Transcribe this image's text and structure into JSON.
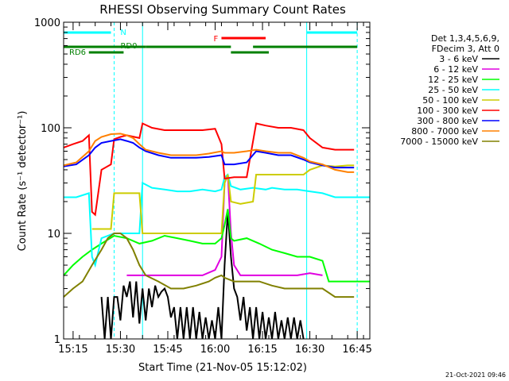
{
  "chart_data": {
    "type": "line",
    "title": "RHESSI Observing Summary Count Rates",
    "xlabel": "Start Time (21-Nov-05 15:12:02)",
    "ylabel": "Count Rate (s⁻¹ detector⁻¹)",
    "yscale": "log",
    "ylim": [
      1,
      1000
    ],
    "y_ticks": [
      {
        "value": 1,
        "label": "1"
      },
      {
        "value": 10,
        "label": "10"
      },
      {
        "value": 100,
        "label": "100"
      },
      {
        "value": 1000,
        "label": "1000"
      }
    ],
    "xlim_minutes_after_15_12": [
      0,
      97
    ],
    "x_ticks": [
      {
        "m": 3,
        "label": "15:15"
      },
      {
        "m": 18,
        "label": "15:30"
      },
      {
        "m": 33,
        "label": "15:45"
      },
      {
        "m": 48,
        "label": "16:00"
      },
      {
        "m": 63,
        "label": "16:15"
      },
      {
        "m": 78,
        "label": "16:30"
      },
      {
        "m": 93,
        "label": "16:45"
      }
    ],
    "legend_header": [
      "Det 1,3,4,5,6,9,",
      "FDecim 3, Att 0"
    ],
    "legend_position": "right",
    "series": [
      {
        "name": "3 - 6 keV",
        "color": "#000000",
        "pts": [
          [
            12,
            2.5
          ],
          [
            13,
            1
          ],
          [
            14,
            2.5
          ],
          [
            15,
            1
          ],
          [
            16,
            2.5
          ],
          [
            17,
            2.5
          ],
          [
            18,
            1.5
          ],
          [
            19,
            3.2
          ],
          [
            20,
            2.5
          ],
          [
            21,
            3.5
          ],
          [
            22,
            1.6
          ],
          [
            23,
            3.5
          ],
          [
            24,
            1.4
          ],
          [
            25,
            3
          ],
          [
            26,
            1.5
          ],
          [
            27,
            3
          ],
          [
            28,
            2
          ],
          [
            29,
            3.2
          ],
          [
            30,
            2.5
          ],
          [
            31,
            2.8
          ],
          [
            32,
            3
          ],
          [
            33,
            2.5
          ],
          [
            34,
            1.6
          ],
          [
            35,
            2
          ],
          [
            36,
            1
          ],
          [
            37,
            2
          ],
          [
            38,
            1
          ],
          [
            39,
            2
          ],
          [
            40,
            1
          ],
          [
            41,
            2
          ],
          [
            42,
            1
          ],
          [
            43,
            1.8
          ],
          [
            44,
            1
          ],
          [
            45,
            1.6
          ],
          [
            46,
            1
          ],
          [
            47,
            1.5
          ],
          [
            48,
            1
          ],
          [
            49,
            2
          ],
          [
            50,
            1
          ],
          [
            51,
            5
          ],
          [
            52,
            16
          ],
          [
            53,
            6
          ],
          [
            54,
            3
          ],
          [
            55,
            2.5
          ],
          [
            56,
            1.5
          ],
          [
            57,
            2.5
          ],
          [
            58,
            1.2
          ],
          [
            59,
            2
          ],
          [
            60,
            1
          ],
          [
            61,
            2
          ],
          [
            62,
            1
          ],
          [
            63,
            1.8
          ],
          [
            64,
            1
          ],
          [
            65,
            1.6
          ],
          [
            66,
            1
          ],
          [
            67,
            1.8
          ],
          [
            68,
            1
          ],
          [
            69,
            1.5
          ],
          [
            70,
            1
          ],
          [
            71,
            1.6
          ],
          [
            72,
            1
          ],
          [
            73,
            1.6
          ],
          [
            74,
            1
          ],
          [
            75,
            1.5
          ],
          [
            76,
            1
          ]
        ]
      },
      {
        "name": "6 - 12 keV",
        "color": "#e000e0",
        "pts": [
          [
            20,
            4
          ],
          [
            24,
            4
          ],
          [
            28,
            4
          ],
          [
            32,
            4
          ],
          [
            36,
            4
          ],
          [
            40,
            4
          ],
          [
            44,
            4
          ],
          [
            48,
            4.5
          ],
          [
            50,
            6
          ],
          [
            51,
            30
          ],
          [
            52,
            36
          ],
          [
            53,
            10
          ],
          [
            54,
            5
          ],
          [
            56,
            4
          ],
          [
            60,
            4
          ],
          [
            66,
            4
          ],
          [
            70,
            4
          ],
          [
            74,
            4
          ],
          [
            78,
            4.2
          ],
          [
            82,
            4
          ]
        ]
      },
      {
        "name": "12 - 25 keV",
        "color": "#00ff00",
        "pts": [
          [
            0,
            4
          ],
          [
            3,
            5
          ],
          [
            6,
            6
          ],
          [
            9,
            7
          ],
          [
            12,
            8
          ],
          [
            16,
            9.5
          ],
          [
            20,
            9
          ],
          [
            24,
            8
          ],
          [
            28,
            8.5
          ],
          [
            32,
            9.5
          ],
          [
            36,
            9
          ],
          [
            40,
            8.5
          ],
          [
            44,
            8
          ],
          [
            48,
            8
          ],
          [
            50,
            9
          ],
          [
            51,
            12
          ],
          [
            52,
            17
          ],
          [
            53,
            9
          ],
          [
            54,
            8.5
          ],
          [
            58,
            9
          ],
          [
            62,
            8
          ],
          [
            66,
            7
          ],
          [
            70,
            6.5
          ],
          [
            74,
            6
          ],
          [
            78,
            6
          ],
          [
            82,
            5.5
          ],
          [
            84,
            3.5
          ],
          [
            90,
            3.5
          ],
          [
            97,
            3.5
          ]
        ]
      },
      {
        "name": "25 - 50 keV",
        "color": "#00ffff",
        "pts": [
          [
            0,
            22
          ],
          [
            4,
            22
          ],
          [
            8,
            24
          ],
          [
            9,
            6
          ],
          [
            10,
            5
          ],
          [
            12,
            9
          ],
          [
            16,
            10
          ],
          [
            20,
            10
          ],
          [
            24,
            10
          ],
          [
            25,
            30
          ],
          [
            28,
            27
          ],
          [
            32,
            26
          ],
          [
            36,
            25
          ],
          [
            40,
            25
          ],
          [
            44,
            26
          ],
          [
            48,
            25
          ],
          [
            50,
            26
          ],
          [
            51,
            34
          ],
          [
            52,
            36
          ],
          [
            53,
            28
          ],
          [
            56,
            26
          ],
          [
            60,
            27
          ],
          [
            64,
            26
          ],
          [
            66,
            27
          ],
          [
            70,
            26
          ],
          [
            74,
            26
          ],
          [
            78,
            25
          ],
          [
            82,
            24
          ],
          [
            86,
            22
          ],
          [
            90,
            22
          ],
          [
            97,
            22
          ]
        ]
      },
      {
        "name": "50 - 100 keV",
        "color": "#cccc00",
        "pts": [
          [
            9,
            11
          ],
          [
            12,
            11
          ],
          [
            15,
            11
          ],
          [
            16,
            24
          ],
          [
            20,
            24
          ],
          [
            24,
            24
          ],
          [
            25,
            10
          ],
          [
            30,
            10
          ],
          [
            35,
            10
          ],
          [
            40,
            10
          ],
          [
            45,
            10
          ],
          [
            50,
            10
          ],
          [
            51,
            30
          ],
          [
            52,
            36
          ],
          [
            53,
            20
          ],
          [
            56,
            19
          ],
          [
            60,
            20
          ],
          [
            61,
            36
          ],
          [
            64,
            36
          ],
          [
            68,
            36
          ],
          [
            72,
            36
          ],
          [
            76,
            36
          ],
          [
            78,
            40
          ],
          [
            82,
            44
          ],
          [
            86,
            43
          ],
          [
            90,
            44
          ],
          [
            92,
            44
          ]
        ]
      },
      {
        "name": "100 - 300 keV",
        "color": "#ff0000",
        "pts": [
          [
            0,
            65
          ],
          [
            3,
            70
          ],
          [
            6,
            75
          ],
          [
            8,
            85
          ],
          [
            9,
            16
          ],
          [
            10,
            15
          ],
          [
            12,
            40
          ],
          [
            15,
            45
          ],
          [
            16,
            78
          ],
          [
            18,
            82
          ],
          [
            20,
            85
          ],
          [
            24,
            80
          ],
          [
            25,
            110
          ],
          [
            28,
            100
          ],
          [
            32,
            95
          ],
          [
            36,
            95
          ],
          [
            40,
            95
          ],
          [
            44,
            95
          ],
          [
            48,
            98
          ],
          [
            50,
            70
          ],
          [
            51,
            33
          ],
          [
            54,
            34
          ],
          [
            58,
            34
          ],
          [
            61,
            110
          ],
          [
            64,
            105
          ],
          [
            68,
            100
          ],
          [
            72,
            100
          ],
          [
            76,
            95
          ],
          [
            78,
            80
          ],
          [
            82,
            65
          ],
          [
            86,
            62
          ],
          [
            90,
            62
          ],
          [
            92,
            62
          ]
        ]
      },
      {
        "name": "300 - 800 keV",
        "color": "#0000ff",
        "pts": [
          [
            0,
            43
          ],
          [
            4,
            45
          ],
          [
            8,
            55
          ],
          [
            10,
            65
          ],
          [
            12,
            72
          ],
          [
            15,
            75
          ],
          [
            18,
            78
          ],
          [
            20,
            75
          ],
          [
            22,
            72
          ],
          [
            24,
            65
          ],
          [
            26,
            60
          ],
          [
            30,
            55
          ],
          [
            34,
            52
          ],
          [
            38,
            52
          ],
          [
            42,
            52
          ],
          [
            46,
            53
          ],
          [
            50,
            55
          ],
          [
            51,
            45
          ],
          [
            54,
            45
          ],
          [
            58,
            47
          ],
          [
            61,
            60
          ],
          [
            64,
            58
          ],
          [
            68,
            55
          ],
          [
            72,
            55
          ],
          [
            76,
            50
          ],
          [
            78,
            47
          ],
          [
            82,
            44
          ],
          [
            86,
            42
          ],
          [
            90,
            42
          ],
          [
            92,
            42
          ]
        ]
      },
      {
        "name": "800 - 7000 keV",
        "color": "#ff8000",
        "pts": [
          [
            0,
            44
          ],
          [
            4,
            47
          ],
          [
            8,
            60
          ],
          [
            10,
            75
          ],
          [
            12,
            82
          ],
          [
            15,
            87
          ],
          [
            18,
            88
          ],
          [
            20,
            85
          ],
          [
            22,
            80
          ],
          [
            24,
            70
          ],
          [
            26,
            62
          ],
          [
            30,
            58
          ],
          [
            34,
            55
          ],
          [
            38,
            55
          ],
          [
            42,
            55
          ],
          [
            46,
            57
          ],
          [
            50,
            60
          ],
          [
            51,
            58
          ],
          [
            54,
            58
          ],
          [
            58,
            60
          ],
          [
            61,
            62
          ],
          [
            64,
            60
          ],
          [
            68,
            58
          ],
          [
            72,
            58
          ],
          [
            76,
            52
          ],
          [
            78,
            48
          ],
          [
            82,
            45
          ],
          [
            86,
            40
          ],
          [
            90,
            38
          ],
          [
            92,
            38
          ]
        ]
      },
      {
        "name": "7000 - 15000 keV",
        "color": "#808000",
        "pts": [
          [
            0,
            2.5
          ],
          [
            3,
            3
          ],
          [
            6,
            3.5
          ],
          [
            9,
            5
          ],
          [
            12,
            7
          ],
          [
            14,
            9
          ],
          [
            16,
            10
          ],
          [
            18,
            10
          ],
          [
            20,
            9
          ],
          [
            22,
            7
          ],
          [
            24,
            5
          ],
          [
            26,
            4
          ],
          [
            30,
            3.5
          ],
          [
            34,
            3
          ],
          [
            38,
            3
          ],
          [
            42,
            3.2
          ],
          [
            46,
            3.5
          ],
          [
            48,
            3.8
          ],
          [
            50,
            4
          ],
          [
            51,
            3.8
          ],
          [
            54,
            3.5
          ],
          [
            58,
            3.5
          ],
          [
            62,
            3.5
          ],
          [
            66,
            3.2
          ],
          [
            70,
            3
          ],
          [
            74,
            3
          ],
          [
            78,
            3
          ],
          [
            82,
            3
          ],
          [
            86,
            2.5
          ],
          [
            90,
            2.5
          ],
          [
            92,
            2.5
          ]
        ]
      }
    ],
    "flag_bars": [
      {
        "label": "N",
        "color": "#00ffff",
        "segments": [
          [
            0,
            15
          ],
          [
            77,
            93
          ]
        ]
      },
      {
        "label": "F",
        "color": "#ff0000",
        "segments": [
          [
            50,
            64
          ]
        ]
      },
      {
        "label": "RD0",
        "color": "#008000",
        "segments": [
          [
            0,
            26
          ],
          [
            26,
            53
          ],
          [
            60,
            93
          ]
        ]
      },
      {
        "label": "RD6",
        "color": "#008000",
        "segments": [
          [
            8,
            19
          ],
          [
            53,
            65
          ]
        ]
      }
    ],
    "vlines_solid_min": [
      0,
      25,
      77
    ],
    "vlines_dashed_min": [
      16,
      93
    ],
    "footer_stamp": "21-Oct-2021 09:46"
  }
}
